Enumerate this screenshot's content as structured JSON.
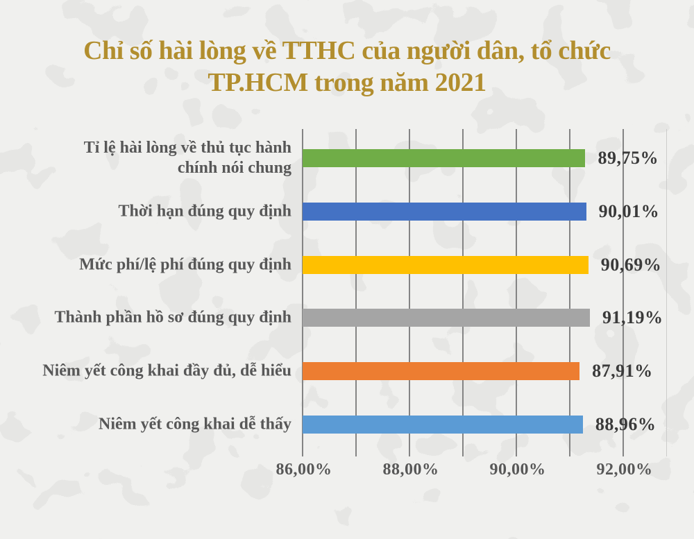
{
  "title": {
    "line1": "Chỉ số hài lòng về TTHC của người dân, tổ chức",
    "line2": "TP.HCM trong năm 2021"
  },
  "chart_data": {
    "type": "bar",
    "orientation": "horizontal",
    "title": "Chỉ số hài lòng về TTHC của người dân, tổ chức TP.HCM trong năm 2021",
    "categories": [
      "Tỉ lệ hài lòng về thủ tục hành chính nói chung",
      "Thời hạn đúng quy định",
      "Mức phí/lệ phí đúng quy định",
      "Thành phần hồ sơ đúng quy định",
      "Niêm yết công khai đầy đủ, dễ hiểu",
      "Niêm yết công khai dễ thấy"
    ],
    "values": [
      89.75,
      90.01,
      90.69,
      91.19,
      87.91,
      88.96
    ],
    "value_labels": [
      "89,75%",
      "90,01%",
      "90,69%",
      "91,19%",
      "87,91%",
      "88,96%"
    ],
    "bar_colors": [
      "#70AD47",
      "#4472C4",
      "#FFC000",
      "#A5A5A5",
      "#ED7D31",
      "#5B9BD5"
    ],
    "x_tick_labels": [
      "86,00%",
      "88,00%",
      "90,00%",
      "92,00%"
    ],
    "x_tick_values": [
      86,
      88,
      90,
      92
    ],
    "gridline_values": [
      86,
      87,
      88,
      89,
      90,
      91,
      92
    ],
    "xlim": [
      86,
      92
    ],
    "grid": "vertical-gridlines",
    "legend_position": "none",
    "bars_note": "bar lengths drawn proportional to value from plot left edge, not to the labeled axis scale"
  },
  "style": {
    "title_color": "#B28E2E",
    "category_label_color": "#575757",
    "value_label_color": "#3A3A3A",
    "tick_label_color": "#575757",
    "gridline_color": "#848484",
    "plot_right_edge_color": "#cccccb",
    "background_color": "#F0F0EE",
    "texture_color": "#e1e2e0"
  }
}
